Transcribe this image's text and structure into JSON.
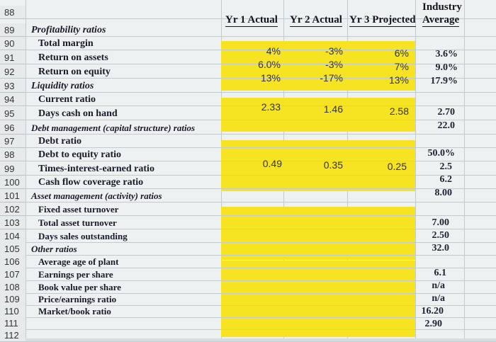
{
  "row_numbers": [
    "88",
    "89",
    "90",
    "91",
    "92",
    "93",
    "94",
    "95",
    "96",
    "97",
    "98",
    "99",
    "100",
    "101",
    "102",
    "103",
    "104",
    "105",
    "106",
    "107",
    "108",
    "109",
    "110",
    "111",
    "112"
  ],
  "headers": {
    "yr1": "Yr 1 Actual",
    "yr2": "Yr 2 Actual",
    "yr3": "Yr 3 Projected",
    "industry_line1": "Industry",
    "industry_line2": "Average"
  },
  "labels": {
    "r89": "Profitability ratios",
    "r90": "Total margin",
    "r91": "Return on assets",
    "r92": "Return on equity",
    "r93": "Liquidity ratios",
    "r94": "Current ratio",
    "r95": "Days cash on hand",
    "r96": "Debt management (capital structure) ratios",
    "r97": "Debt ratio",
    "r98": "Debt to equity ratio",
    "r99": "Times-interest-earned ratio",
    "r100": "Cash flow coverage ratio",
    "r101": "Asset management (activity) ratios",
    "r102": "Fixed asset turnover",
    "r103": "Total asset turnover",
    "r104": "Days sales outstanding",
    "r105": "Other ratios",
    "r106": "Average age of plant",
    "r107": "Earnings per share",
    "r108": "Book value per share",
    "r109": "Price/earnings ratio",
    "r110": "Market/book ratio"
  },
  "values": {
    "yr1": {
      "r90": "4%",
      "r91": "6.0%",
      "r92": "13%",
      "r94": "2.33",
      "r98": "0.49"
    },
    "yr2": {
      "r90": "-3%",
      "r91": "-3%",
      "r92": "-17%",
      "r94": "1.46",
      "r98": "0.35"
    },
    "yr3": {
      "r90": "6%",
      "r91": "7%",
      "r92": "13%",
      "r94": "2.58",
      "r98": "0.25"
    },
    "industry": {
      "r90": "3.6%",
      "r91": "9.0%",
      "r92": "17.9%",
      "r94": "2.70",
      "r95": "22.0",
      "r97": "50.0%",
      "r98": "2.5",
      "r99": "6.2",
      "r100": "8.00",
      "r102": "7.00",
      "r103": "2.50",
      "r104": "32.0",
      "r106": "6.1",
      "r107": "n/a",
      "r108": "n/a",
      "r109": "16.20",
      "r110": "2.90"
    }
  },
  "colors": {
    "highlight": "#f6e322",
    "grid": "#c2ccd0"
  }
}
